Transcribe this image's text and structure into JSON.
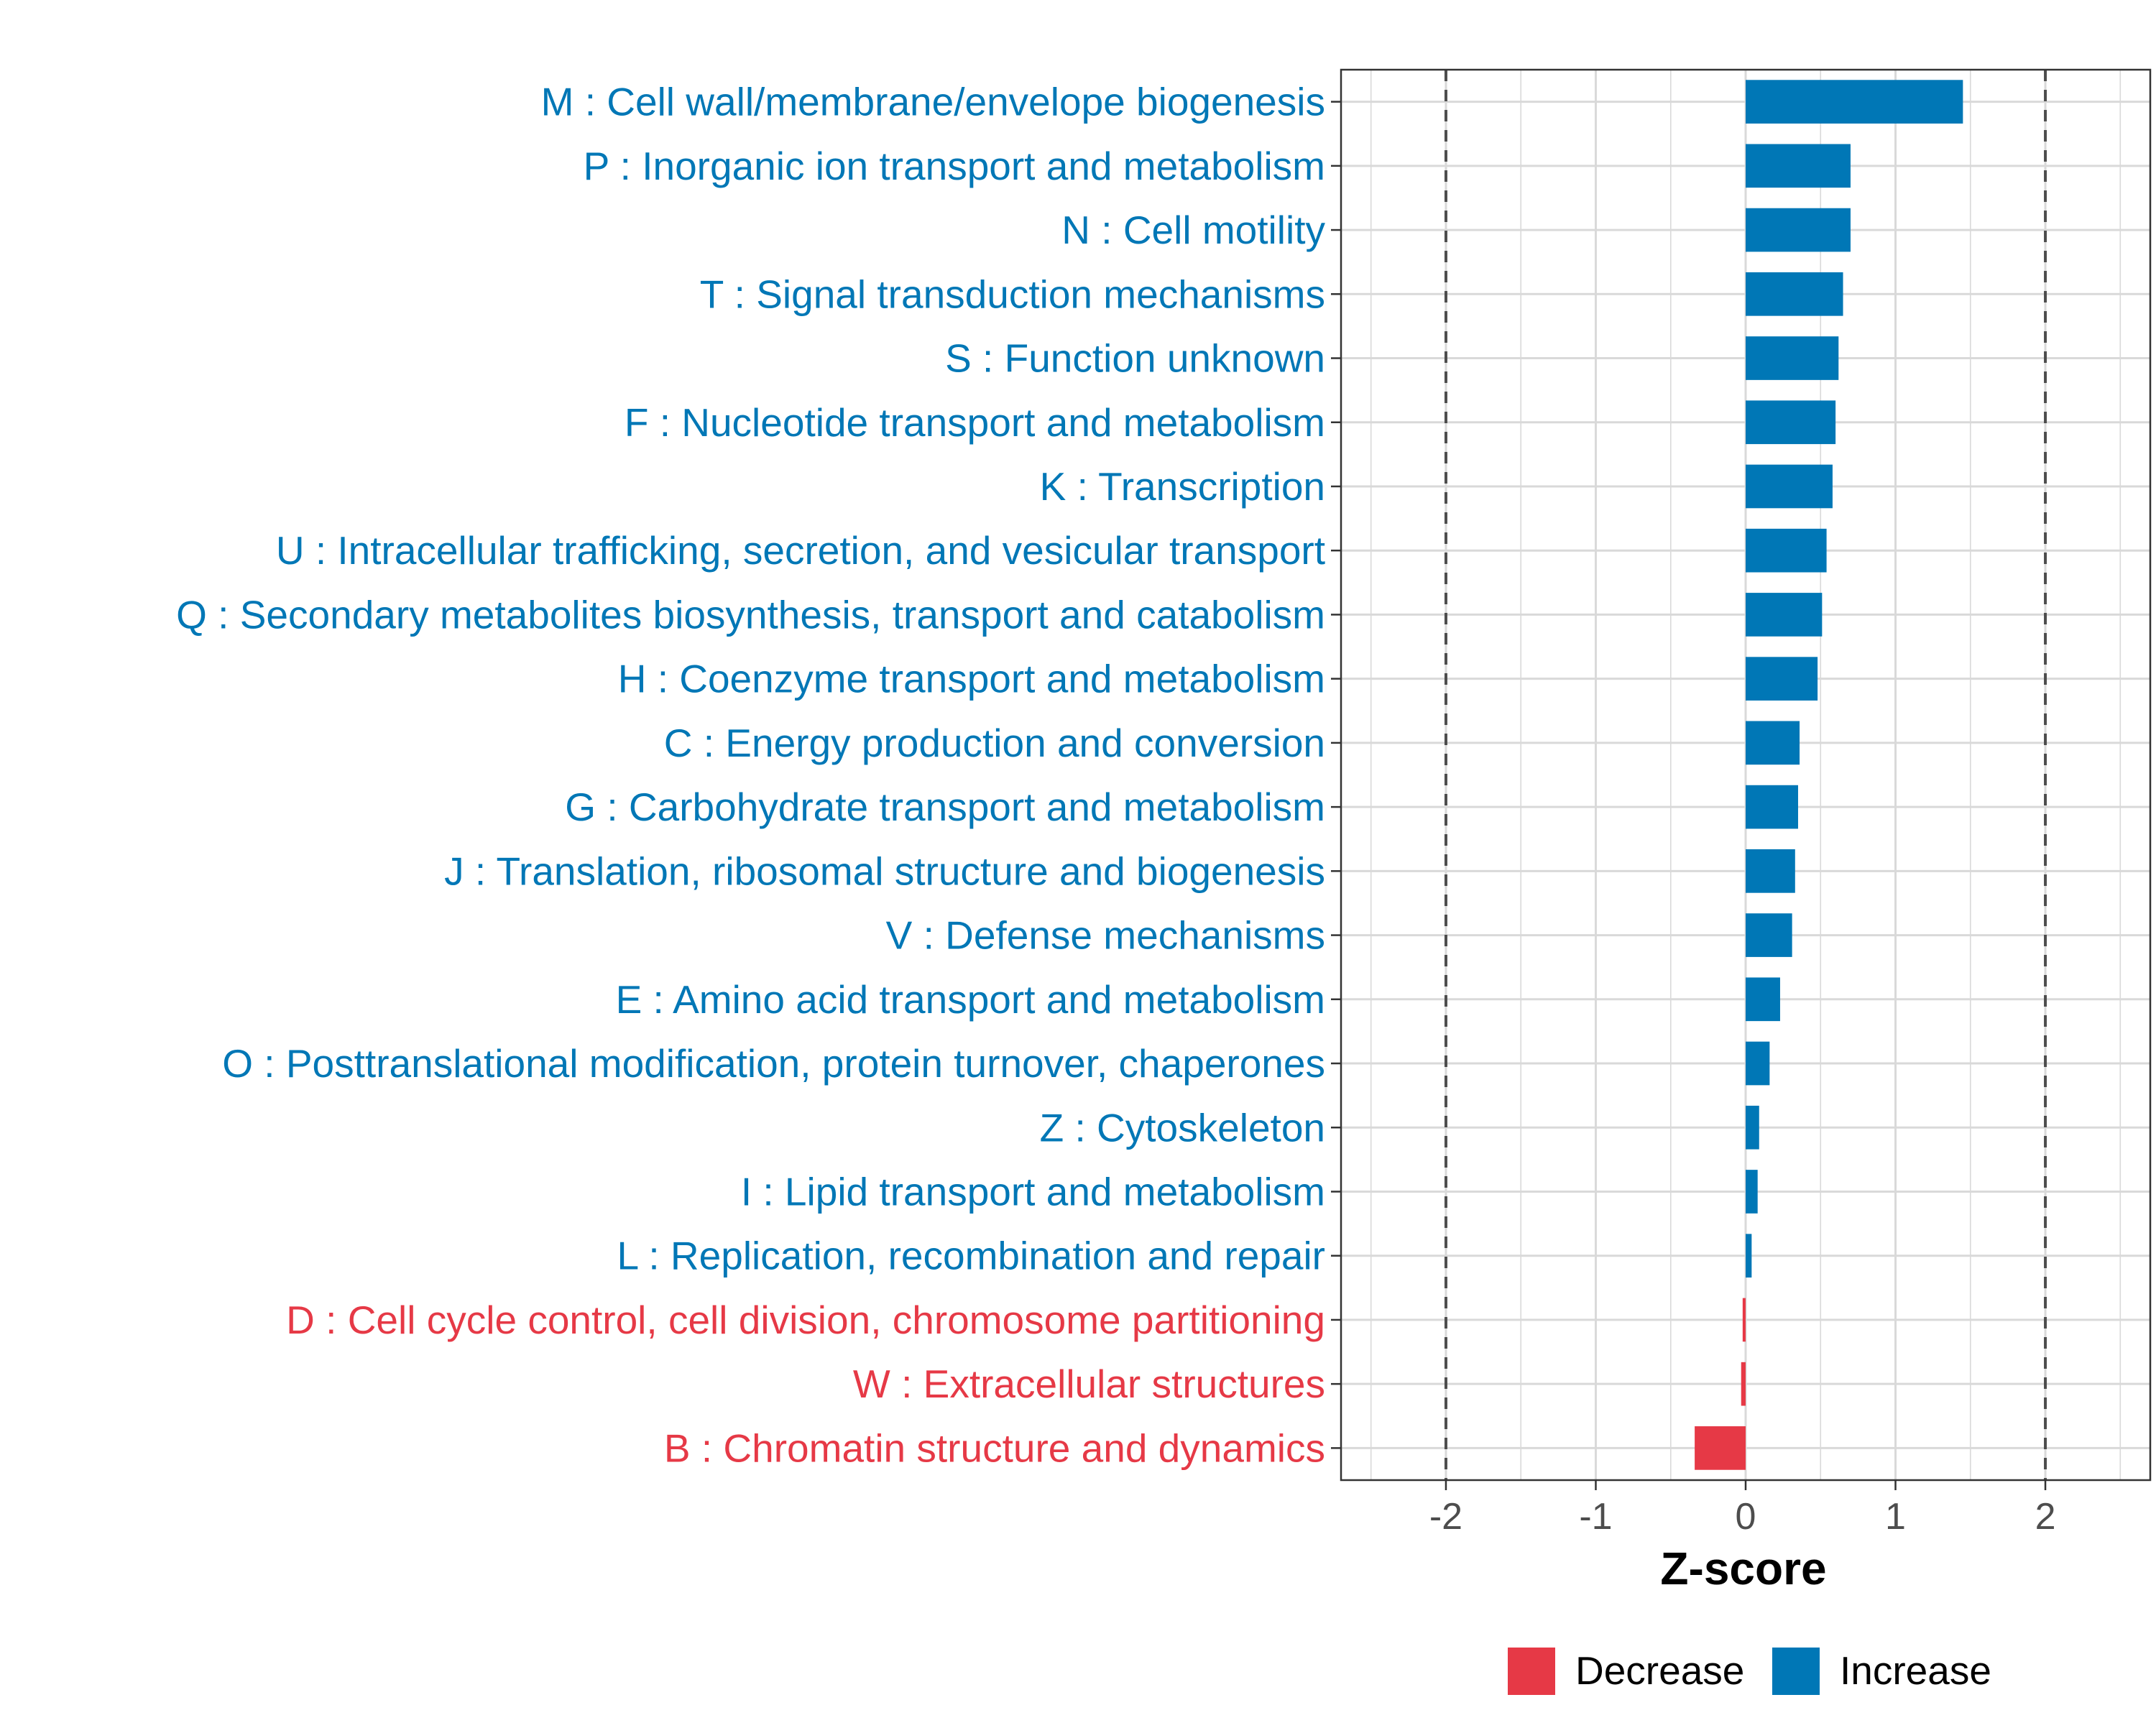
{
  "chart_data": {
    "type": "bar",
    "orientation": "horizontal",
    "title": "",
    "xlabel": "Z-score",
    "ylabel": "",
    "xlim": [
      -2.7,
      2.7
    ],
    "x_ticks": [
      -2,
      -1,
      0,
      1,
      2
    ],
    "x_tick_labels": [
      "-2",
      "-1",
      "0",
      "1",
      "2"
    ],
    "reference_lines": [
      -2,
      2
    ],
    "grid": true,
    "categories": [
      "M : Cell wall/membrane/envelope biogenesis",
      "P : Inorganic ion transport and metabolism",
      "N : Cell motility",
      "T : Signal transduction mechanisms",
      "S : Function unknown",
      "F : Nucleotide transport and metabolism",
      "K : Transcription",
      "U : Intracellular trafficking, secretion, and vesicular transport",
      "Q : Secondary metabolites biosynthesis, transport and catabolism",
      "H : Coenzyme transport and metabolism",
      "C : Energy production and conversion",
      "G : Carbohydrate transport and metabolism",
      "J : Translation, ribosomal structure and biogenesis",
      "V : Defense mechanisms",
      "E : Amino acid transport and metabolism",
      "O : Posttranslational modification, protein turnover, chaperones",
      "Z : Cytoskeleton",
      "I : Lipid transport and metabolism",
      "L : Replication, recombination and repair",
      "D : Cell cycle control, cell division, chromosome partitioning",
      "W : Extracellular structures",
      "B : Chromatin structure and dynamics"
    ],
    "values": [
      1.45,
      0.7,
      0.7,
      0.65,
      0.62,
      0.6,
      0.58,
      0.54,
      0.51,
      0.48,
      0.36,
      0.35,
      0.33,
      0.31,
      0.23,
      0.16,
      0.09,
      0.08,
      0.04,
      -0.02,
      -0.03,
      -0.34
    ],
    "groups": [
      "Increase",
      "Increase",
      "Increase",
      "Increase",
      "Increase",
      "Increase",
      "Increase",
      "Increase",
      "Increase",
      "Increase",
      "Increase",
      "Increase",
      "Increase",
      "Increase",
      "Increase",
      "Increase",
      "Increase",
      "Increase",
      "Increase",
      "Decrease",
      "Decrease",
      "Decrease"
    ],
    "legend": {
      "position": "bottom",
      "items": [
        {
          "label": "Decrease",
          "color": "#e63946"
        },
        {
          "label": "Increase",
          "color": "#0077b6"
        }
      ]
    },
    "colors": {
      "increase": "#0077b6",
      "decrease": "#e63946",
      "grid": "#d9d9d9",
      "axis_text": "#4d4d4d",
      "reference_line": "#4d4d4d"
    }
  }
}
